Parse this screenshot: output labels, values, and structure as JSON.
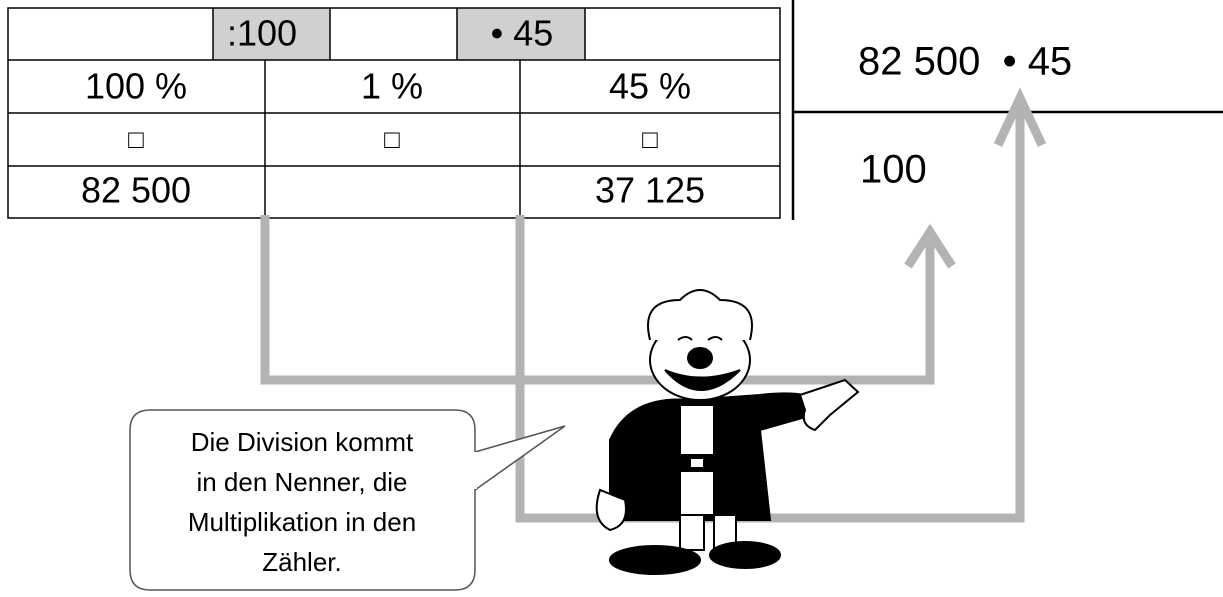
{
  "table": {
    "operations": [
      ":100",
      "• 45"
    ],
    "percent_row": [
      "100 %",
      "1 %",
      "45 %"
    ],
    "arrow_row": [
      "□",
      "□",
      "□"
    ],
    "result_row": [
      "82 500",
      "37 125"
    ]
  },
  "fraction": {
    "numerator": "82 500  • 45",
    "denominator": "100"
  },
  "speech_bubble": {
    "lines": [
      "Die Division kommt",
      "in den Nenner, die",
      "Multiplikation in den",
      "Zähler."
    ]
  }
}
